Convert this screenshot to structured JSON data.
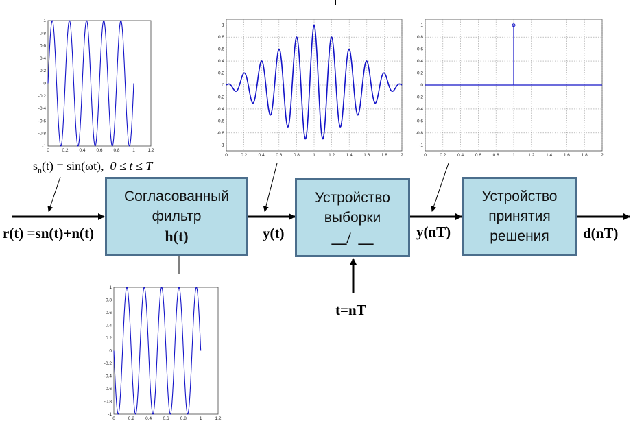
{
  "blocks": {
    "filter": {
      "line1": "Согласованный",
      "line2": "фильтр",
      "line3": "h(t)"
    },
    "sampler": {
      "line1": "Устройство",
      "line2": "выборки",
      "line3": "__/  __"
    },
    "decision": {
      "line1": "Устройство",
      "line2": "принятия",
      "line3": "решения"
    }
  },
  "signals": {
    "input": "r(t) =sn(t)+n(t)",
    "filter_out": "y(t)",
    "sampler_out": "y(nT)",
    "output": "d(nT)",
    "sample_clock": "t=nT"
  },
  "formula": {
    "lhs_s": "s",
    "lhs_sub": "n",
    "lhs_rest": "(t) = sin(ωt),",
    "range": "0 ≤ t ≤ T"
  },
  "chart_data": [
    {
      "id": "input-signal-plot",
      "type": "line",
      "function": "sin(2*pi*5*t)",
      "x_range": [
        0,
        1
      ],
      "xlim": [
        0,
        1.2
      ],
      "ylim": [
        -1,
        1
      ],
      "xticks": [
        "0",
        "0.2",
        "0.4",
        "0.6",
        "0.8",
        "1",
        "1.2"
      ],
      "yticks": [
        "-1",
        "-0.8",
        "-0.6",
        "-0.4",
        "-0.2",
        "0",
        "0.2",
        "0.4",
        "0.6",
        "0.8",
        "1"
      ],
      "grid": false,
      "color": "#1414c8"
    },
    {
      "id": "impulse-response-plot",
      "type": "line",
      "function": "sin(2*pi*5*(1-t))",
      "x_range": [
        0,
        1
      ],
      "xlim": [
        0,
        1.2
      ],
      "ylim": [
        -1,
        1
      ],
      "xticks": [
        "0",
        "0.2",
        "0.4",
        "0.6",
        "0.8",
        "1",
        "1.2"
      ],
      "yticks": [
        "-1",
        "-0.8",
        "-0.6",
        "-0.4",
        "-0.2",
        "0",
        "0.2",
        "0.4",
        "0.6",
        "0.8",
        "1"
      ],
      "grid": false,
      "color": "#1414c8"
    },
    {
      "id": "filter-output-plot",
      "type": "line",
      "function": "triangle-windowed cosine, peak 1 at t=1",
      "x_range": [
        0,
        2
      ],
      "xlim": [
        0,
        2
      ],
      "ylim": [
        -1.1,
        1.1
      ],
      "xticks": [
        "0",
        "0.2",
        "0.4",
        "0.6",
        "0.8",
        "1",
        "1.2",
        "1.4",
        "1.6",
        "1.8",
        "2"
      ],
      "yticks": [
        "-1",
        "-0.8",
        "-0.6",
        "-0.4",
        "-0.2",
        "0",
        "0.2",
        "0.4",
        "0.6",
        "0.8",
        "1"
      ],
      "grid": true,
      "color": "#1414c8"
    },
    {
      "id": "sample-plot",
      "type": "stem",
      "x": [
        1
      ],
      "y": [
        1
      ],
      "xlim": [
        0,
        2
      ],
      "ylim": [
        -1.1,
        1.1
      ],
      "xticks": [
        "0",
        "0.2",
        "0.4",
        "0.6",
        "0.8",
        "1",
        "1.2",
        "1.4",
        "1.6",
        "1.8",
        "2"
      ],
      "yticks": [
        "-1",
        "-0.8",
        "-0.6",
        "-0.4",
        "-0.2",
        "0",
        "0.2",
        "0.4",
        "0.6",
        "0.8",
        "1"
      ],
      "grid": true,
      "color": "#1414c8"
    }
  ]
}
